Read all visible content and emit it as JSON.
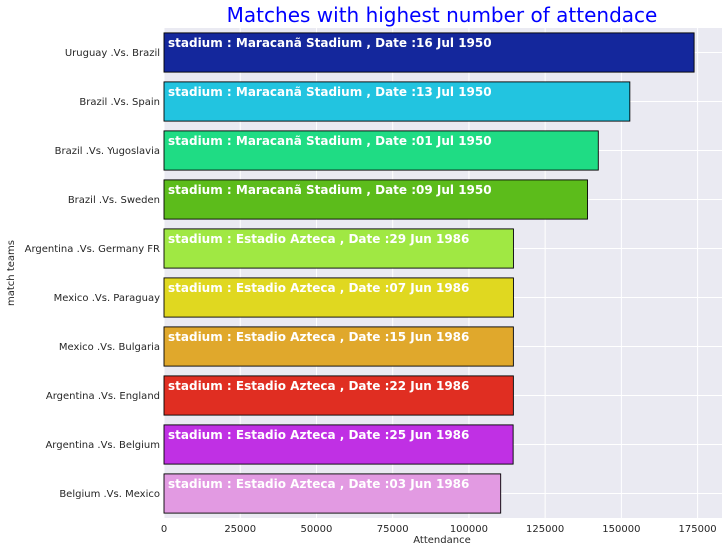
{
  "chart_data": {
    "type": "bar",
    "orientation": "horizontal",
    "title": "Matches with highest number of attendace",
    "xlabel": "Attendance",
    "ylabel": "match teams",
    "xlim": [
      0,
      183000
    ],
    "xticks": [
      0,
      25000,
      50000,
      75000,
      100000,
      125000,
      150000,
      175000
    ],
    "grid": true,
    "categories": [
      "Uruguay .Vs.  Brazil",
      "Brazil .Vs.  Spain",
      "Brazil .Vs.  Yugoslavia",
      "Brazil .Vs.  Sweden",
      "Argentina .Vs.  Germany FR",
      "Mexico .Vs.  Paraguay",
      "Mexico .Vs.  Bulgaria",
      "Argentina .Vs.  England",
      "Argentina .Vs.  Belgium",
      "Belgium .Vs.  Mexico"
    ],
    "values": [
      173850,
      152772,
      142429,
      138886,
      114600,
      114600,
      114580,
      114580,
      114500,
      110420
    ],
    "bar_labels": [
      "stadium : Maracanã Stadium , Date :16 Jul 1950",
      "stadium : Maracanã Stadium , Date :13 Jul 1950",
      "stadium : Maracanã Stadium , Date :01 Jul 1950",
      "stadium : Maracanã Stadium , Date :09 Jul 1950",
      "stadium : Estadio Azteca , Date :29 Jun 1986",
      "stadium : Estadio Azteca , Date :07 Jun 1986",
      "stadium : Estadio Azteca , Date :15 Jun 1986",
      "stadium : Estadio Azteca , Date :22 Jun 1986",
      "stadium : Estadio Azteca , Date :25 Jun 1986",
      "stadium : Estadio Azteca , Date :03 Jun 1986"
    ],
    "colors": [
      "#14279c",
      "#22c4e0",
      "#1fdc84",
      "#5cbc1b",
      "#a0e843",
      "#e0d820",
      "#e0a82c",
      "#e02e22",
      "#c030e4",
      "#e29ae2"
    ]
  }
}
